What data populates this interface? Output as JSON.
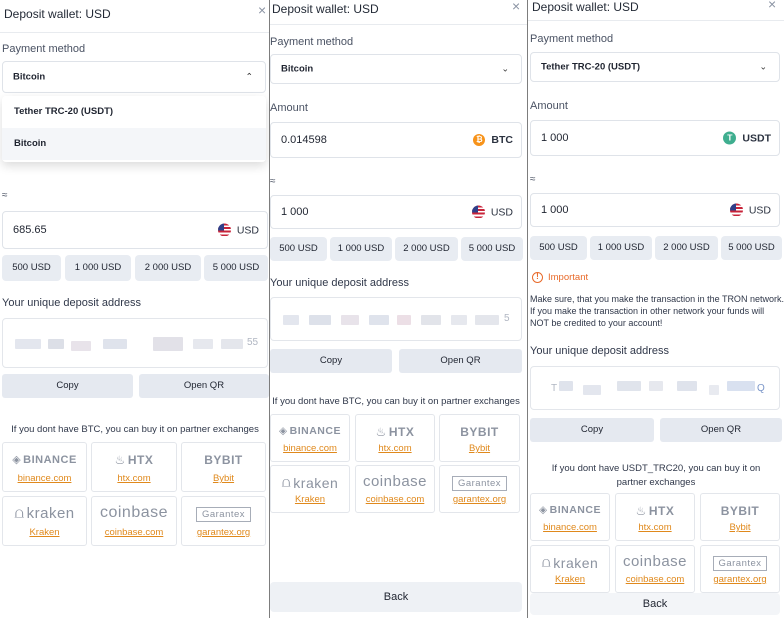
{
  "panel1": {
    "title": "Deposit wallet: USD",
    "payment_label": "Payment method",
    "selected": "Bitcoin",
    "dropdown": [
      "Tether TRC-20 (USDT)",
      "Bitcoin"
    ],
    "approx": "≈",
    "fiat_value": "685.65",
    "fiat_currency": "USD",
    "presets": [
      "500 USD",
      "1 000 USD",
      "2 000 USD",
      "5 000 USD"
    ],
    "address_label": "Your unique deposit address",
    "address_tail": "55",
    "copy": "Copy",
    "open_qr": "Open QR",
    "note": "If you dont have BTC, you can buy it on partner exchanges"
  },
  "panel2": {
    "title": "Deposit wallet: USD",
    "payment_label": "Payment method",
    "selected": "Bitcoin",
    "amount_label": "Amount",
    "crypto_value": "0.014598",
    "crypto_currency": "BTC",
    "approx": "≈",
    "fiat_value": "1 000",
    "fiat_currency": "USD",
    "presets": [
      "500 USD",
      "1 000 USD",
      "2 000 USD",
      "5 000 USD"
    ],
    "address_label": "Your unique deposit address",
    "address_tail": "5",
    "copy": "Copy",
    "open_qr": "Open QR",
    "note": "If you dont have BTC, you can buy it on partner exchanges",
    "back": "Back"
  },
  "panel3": {
    "title": "Deposit wallet: USD",
    "payment_label": "Payment method",
    "selected": "Tether TRC-20 (USDT)",
    "amount_label": "Amount",
    "crypto_value": "1 000",
    "crypto_currency": "USDT",
    "approx": "≈",
    "fiat_value": "1 000",
    "fiat_currency": "USD",
    "presets": [
      "500 USD",
      "1 000 USD",
      "2 000 USD",
      "5 000 USD"
    ],
    "important_label": "Important",
    "warning": "Make sure, that you make the transaction in the TRON network. If you make the transaction in other network your funds will NOT be credited to your account!",
    "address_label": "Your unique deposit address",
    "address_head": "T",
    "address_tail": "Q",
    "copy": "Copy",
    "open_qr": "Open QR",
    "note": "If you dont have USDT_TRC20, you can buy it on partner exchanges",
    "back": "Back"
  },
  "exchanges": [
    {
      "logo": "BINANCE",
      "link": "binance.com",
      "icon": "binance-icon"
    },
    {
      "logo": "HTX",
      "link": "htx.com",
      "icon": "htx-icon"
    },
    {
      "logo": "BYBIT",
      "link": "Bybit",
      "icon": "none"
    },
    {
      "logo": "kraken",
      "link": "Kraken",
      "icon": "kraken-icon"
    },
    {
      "logo": "coinbase",
      "link": "coinbase.com",
      "icon": "none"
    },
    {
      "logo": "Garantex",
      "link": "garantex.org",
      "icon": "none"
    }
  ],
  "colors": {
    "accent_link": "#e0891c",
    "button_bg": "#e5e9f0",
    "important": "#e86a2a",
    "btc": "#f7931a",
    "usdt": "#3fae8f"
  }
}
